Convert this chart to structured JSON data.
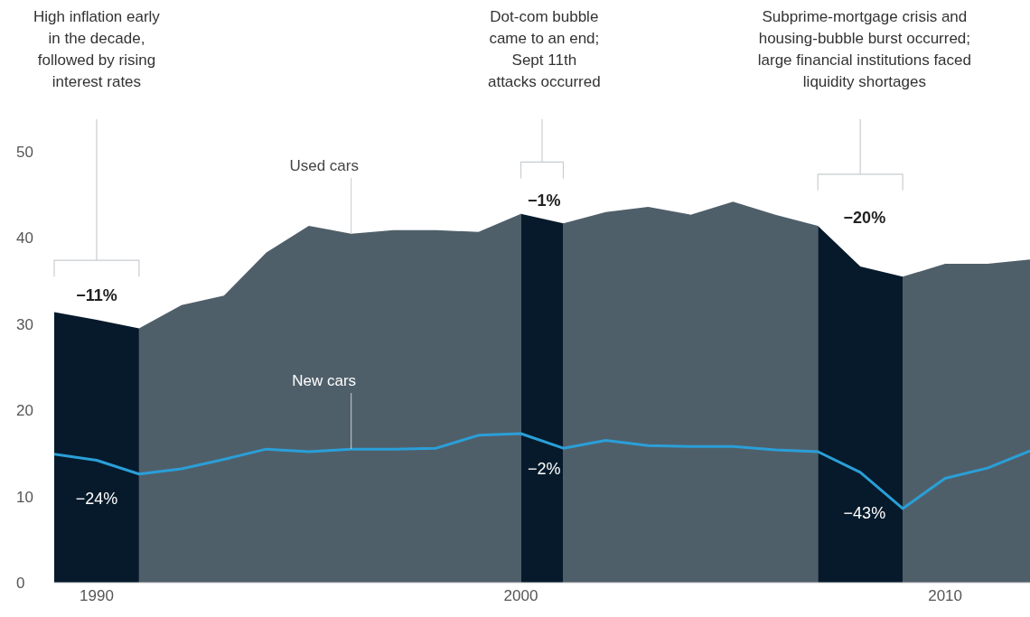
{
  "chart_data": {
    "type": "area",
    "x": [
      1989,
      1990,
      1991,
      1992,
      1993,
      1994,
      1995,
      1996,
      1997,
      1998,
      1999,
      2000,
      2001,
      2002,
      2003,
      2004,
      2005,
      2006,
      2007,
      2008,
      2009,
      2010,
      2011,
      2012
    ],
    "series": [
      {
        "name": "Used cars",
        "color": "#4f5f6a",
        "values": [
          31.4,
          30.5,
          29.5,
          32.2,
          33.3,
          38.3,
          41.4,
          40.5,
          40.9,
          40.9,
          40.7,
          42.8,
          41.7,
          43.0,
          43.6,
          42.7,
          44.2,
          42.7,
          41.4,
          36.7,
          35.5,
          37.0,
          37.0,
          37.5
        ]
      },
      {
        "name": "New cars",
        "type": "line",
        "color": "#2a9fd8",
        "values": [
          14.9,
          14.2,
          12.6,
          13.2,
          14.3,
          15.5,
          15.2,
          15.5,
          15.5,
          15.6,
          17.1,
          17.3,
          15.6,
          16.5,
          15.9,
          15.8,
          15.8,
          15.4,
          15.2,
          12.8,
          8.6,
          12.1,
          13.3,
          15.3
        ]
      }
    ],
    "xlim": [
      1989,
      2012
    ],
    "xticks": [
      1990,
      2000,
      2010
    ],
    "ylim": [
      0,
      50
    ],
    "yticks": [
      0,
      10,
      20,
      30,
      40,
      50
    ],
    "bands": [
      {
        "axis": "x",
        "from": 1989,
        "to": 1991,
        "color": "#061a2b"
      },
      {
        "axis": "x",
        "from": 2000,
        "to": 2001,
        "color": "#061a2b"
      },
      {
        "axis": "x",
        "from": 2007,
        "to": 2009,
        "color": "#061a2b"
      }
    ],
    "annotations": [
      "High inflation early\nin the decade,\nfollowed by rising\ninterest rates",
      "Dot-com bubble\ncame to an end;\nSept 11th\nattacks occurred",
      "Subprime-mortgage crisis and\nhousing-bubble burst occurred;\nlarge financial institutions faced\nliquidity shortages",
      "−11%",
      "−24%",
      "−1%",
      "−2%",
      "−20%",
      "−43%"
    ]
  }
}
